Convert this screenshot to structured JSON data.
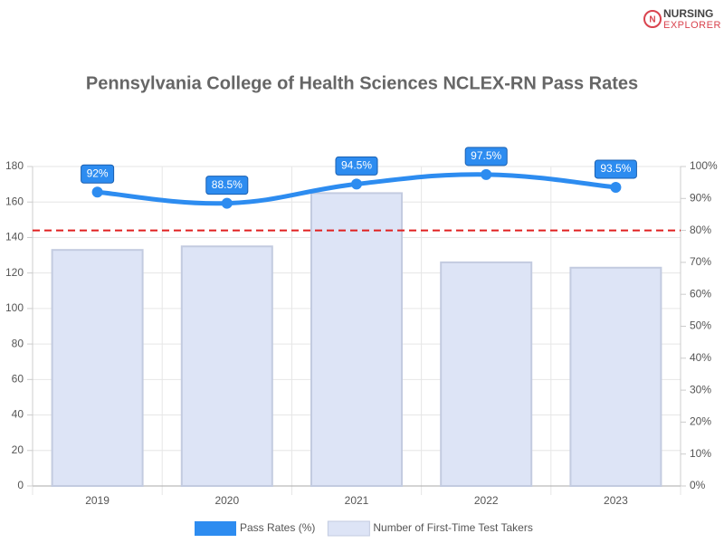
{
  "logo": {
    "top": "NURSING",
    "bottom": "EXPLORER"
  },
  "chart_data": {
    "type": "bar-line",
    "title": "Pennsylvania College of Health Sciences NCLEX-RN Pass Rates",
    "categories": [
      "2019",
      "2020",
      "2021",
      "2022",
      "2023"
    ],
    "series": [
      {
        "name": "Pass Rates (%)",
        "type": "line",
        "axis": "y2",
        "color": "#2d8cf0",
        "values": [
          92,
          88.5,
          94.5,
          97.5,
          93.5
        ],
        "value_labels": [
          "92%",
          "88.5%",
          "94.5%",
          "97.5%",
          "93.5%"
        ]
      },
      {
        "name": "Number of First-Time Test Takers",
        "type": "bar",
        "axis": "y",
        "color": "#dde4f6",
        "values": [
          133,
          135,
          165,
          126,
          123
        ]
      }
    ],
    "ylim": [
      0,
      180
    ],
    "yticks": [
      0,
      20,
      40,
      60,
      80,
      100,
      120,
      140,
      160,
      180
    ],
    "y2lim": [
      0,
      100
    ],
    "y2ticks": [
      {
        "value": 0,
        "label": "0%"
      },
      {
        "value": 10,
        "label": "10%"
      },
      {
        "value": 20,
        "label": "20%"
      },
      {
        "value": 30,
        "label": "30%"
      },
      {
        "value": 40,
        "label": "40%"
      },
      {
        "value": 50,
        "label": "50%"
      },
      {
        "value": 60,
        "label": "60%"
      },
      {
        "value": 70,
        "label": "70%"
      },
      {
        "value": 80,
        "label": "80%"
      },
      {
        "value": 90,
        "label": "90%"
      },
      {
        "value": 100,
        "label": "100%"
      }
    ],
    "threshold": 80,
    "threshold_color": "#e02020",
    "grid": true,
    "legend": "bottom"
  }
}
